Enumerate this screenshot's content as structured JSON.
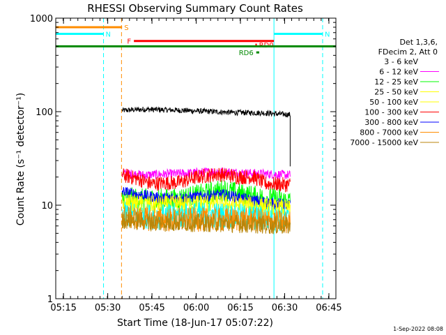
{
  "chart_data": {
    "type": "line",
    "title": "RHESSI Observing Summary Count Rates",
    "xlabel": "Start Time (18-Jun-17 05:07:22)",
    "ylabel": "Count Rate (s⁻¹ detector⁻¹)",
    "yscale": "log",
    "ylim": [
      1,
      1000
    ],
    "xlim_minutes": [
      5.0,
      100.0
    ],
    "x_unit": "minutes after 05:07:22",
    "x_ticks": [
      {
        "t": 7.63,
        "label": "05:15"
      },
      {
        "t": 22.63,
        "label": "05:30"
      },
      {
        "t": 37.63,
        "label": "05:45"
      },
      {
        "t": 52.63,
        "label": "06:00"
      },
      {
        "t": 67.63,
        "label": "06:15"
      },
      {
        "t": 82.63,
        "label": "06:30"
      },
      {
        "t": 97.63,
        "label": "06:45"
      }
    ],
    "y_ticks": [
      {
        "v": 1,
        "label": "1"
      },
      {
        "v": 10,
        "label": "10"
      },
      {
        "v": 100,
        "label": "100"
      },
      {
        "v": 1000,
        "label": "1000"
      }
    ],
    "legend": {
      "header": [
        "Det 1,3,6,",
        "FDecim 2, Att 0"
      ],
      "placement": "right",
      "entries": [
        {
          "label": "3 - 6 keV",
          "color": "#ffffff"
        },
        {
          "label": "6 - 12 keV",
          "color": "#ff00ff"
        },
        {
          "label": "12 - 25 keV",
          "color": "#00ff00"
        },
        {
          "label": "25 - 50 keV",
          "color": "#ffff00"
        },
        {
          "label": "50 - 100 keV",
          "color": "#ffff00"
        },
        {
          "label": "100 - 300 keV",
          "color": "#ff0000"
        },
        {
          "label": "300 - 800 keV",
          "color": "#0000ff"
        },
        {
          "label": "800 - 7000 keV",
          "color": "#ff8c00"
        },
        {
          "label": "7000 - 15000 keV",
          "color": "#b8860b"
        }
      ]
    },
    "data_start_min": 27.5,
    "data_end_min": 84.5,
    "series": [
      {
        "name": "3 - 6 keV",
        "color": "#000000",
        "points": [
          [
            27.5,
            103
          ],
          [
            35,
            106
          ],
          [
            45,
            104
          ],
          [
            55,
            101
          ],
          [
            65,
            98
          ],
          [
            75,
            97
          ],
          [
            84,
            93
          ]
        ],
        "noise": 0.03
      },
      {
        "name": "6 - 12 keV",
        "color": "#ff00ff",
        "points": [
          [
            27.5,
            22
          ],
          [
            35,
            21
          ],
          [
            50,
            22
          ],
          [
            60,
            23
          ],
          [
            70,
            22
          ],
          [
            84,
            21
          ]
        ],
        "noise": 0.05
      },
      {
        "name": "100 - 300 keV",
        "color": "#ff0000",
        "points": [
          [
            27.5,
            21
          ],
          [
            33,
            19
          ],
          [
            37,
            17
          ],
          [
            47,
            17.5
          ],
          [
            53,
            20
          ],
          [
            60,
            21.5
          ],
          [
            67,
            20
          ],
          [
            72,
            20
          ],
          [
            76,
            17
          ],
          [
            84,
            16.5
          ]
        ],
        "noise": 0.08
      },
      {
        "name": "12 - 25 keV",
        "color": "#00ff00",
        "points": [
          [
            27.5,
            12
          ],
          [
            35,
            11.5
          ],
          [
            45,
            11.5
          ],
          [
            55,
            13
          ],
          [
            62,
            14.5
          ],
          [
            68,
            13
          ],
          [
            75,
            12
          ],
          [
            84,
            11
          ]
        ],
        "noise": 0.12
      },
      {
        "name": "300 - 800 keV",
        "color": "#0000ff",
        "points": [
          [
            27.5,
            14
          ],
          [
            33,
            13
          ],
          [
            40,
            12
          ],
          [
            48,
            12
          ],
          [
            55,
            12.5
          ],
          [
            62,
            13
          ],
          [
            70,
            11.5
          ],
          [
            84,
            10
          ]
        ],
        "noise": 0.06
      },
      {
        "name": "25 - 50 keV",
        "color": "#ffff00",
        "points": [
          [
            27.5,
            10.5
          ],
          [
            40,
            10
          ],
          [
            55,
            10.5
          ],
          [
            70,
            10
          ],
          [
            84,
            9
          ]
        ],
        "noise": 0.1
      },
      {
        "name": "50 - 100 keV",
        "color": "#00ffff",
        "points": [
          [
            27.5,
            8
          ],
          [
            40,
            7.5
          ],
          [
            55,
            8
          ],
          [
            70,
            7.5
          ],
          [
            84,
            7
          ]
        ],
        "noise": 0.14
      },
      {
        "name": "800 - 7000 keV",
        "color": "#ff8c00",
        "points": [
          [
            27.5,
            7.5
          ],
          [
            40,
            7
          ],
          [
            55,
            7
          ],
          [
            70,
            7
          ],
          [
            84,
            6.5
          ]
        ],
        "noise": 0.13
      },
      {
        "name": "7000 - 15000 keV",
        "color": "#b8860b",
        "points": [
          [
            27.5,
            7
          ],
          [
            40,
            6.5
          ],
          [
            55,
            6.5
          ],
          [
            70,
            6.3
          ],
          [
            84,
            6
          ]
        ],
        "noise": 0.1
      }
    ],
    "state_bars": [
      {
        "label": "S",
        "color": "#ff8c00",
        "y": 800,
        "start": 5.0,
        "end": 27.5
      },
      {
        "label": "N",
        "color": "#00ffff",
        "y": 680,
        "start": 5.0,
        "end": 21.2
      },
      {
        "label": "N",
        "color": "#00ffff",
        "y": 680,
        "start": 79.0,
        "end": 95.5
      },
      {
        "label": "F",
        "color": "#ff0000",
        "y": 570,
        "start": 31.5,
        "end": 79.0
      },
      {
        "label": "RD0",
        "color": "#ff0000",
        "y": 520,
        "start": 72.7,
        "end": 73.2
      },
      {
        "label": "RD6",
        "color": "#008800",
        "y": 430,
        "start": 73.0,
        "end": 74.0
      },
      {
        "label": "",
        "color": "#008800",
        "y": 500,
        "start": 5.0,
        "end": 100.0
      }
    ],
    "vertical_lines": [
      {
        "t": 5.0,
        "color": "#00ffff",
        "style": "solid"
      },
      {
        "t": 21.2,
        "color": "#00ffff",
        "style": "dashed"
      },
      {
        "t": 27.3,
        "color": "#ff8c00",
        "style": "dashed"
      },
      {
        "t": 79.0,
        "color": "#00ffff",
        "style": "solid"
      },
      {
        "t": 95.5,
        "color": "#00ffff",
        "style": "dashed"
      }
    ],
    "footer": "1-Sep-2022 08:08"
  }
}
